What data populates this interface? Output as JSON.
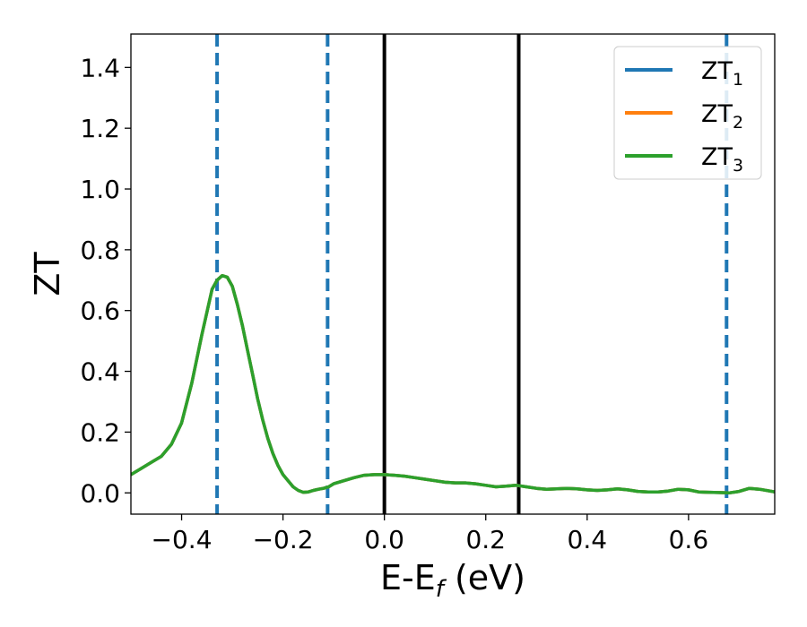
{
  "chart_data": {
    "type": "line",
    "xlabel": "E-E",
    "xlabel_sub": "f",
    "xlabel_unit": " (eV)",
    "ylabel": "ZT",
    "xlim": [
      -0.5,
      0.77
    ],
    "ylim": [
      -0.07,
      1.51
    ],
    "xticks": [
      -0.4,
      -0.2,
      0.0,
      0.2,
      0.4,
      0.6
    ],
    "xtick_labels": [
      "−0.4",
      "−0.2",
      "0.0",
      "0.2",
      "0.4",
      "0.6"
    ],
    "yticks": [
      0.0,
      0.2,
      0.4,
      0.6,
      0.8,
      1.0,
      1.2,
      1.4
    ],
    "ytick_labels": [
      "0.0",
      "0.2",
      "0.4",
      "0.6",
      "0.8",
      "1.0",
      "1.2",
      "1.4"
    ],
    "grid": false,
    "legend_position": "top-right",
    "series": [
      {
        "name": "ZT",
        "name_sub": "1",
        "color": "#1f77b4",
        "x": [
          -0.5,
          -0.48,
          -0.46,
          -0.44,
          -0.42,
          -0.4,
          -0.38,
          -0.36,
          -0.34,
          -0.33,
          -0.32,
          -0.31,
          -0.3,
          -0.29,
          -0.28,
          -0.27,
          -0.26,
          -0.25,
          -0.24,
          -0.23,
          -0.22,
          -0.21,
          -0.2,
          -0.19,
          -0.18,
          -0.17,
          -0.16,
          -0.15,
          -0.14,
          -0.13,
          -0.12,
          -0.11,
          -0.1,
          -0.08,
          -0.06,
          -0.04,
          -0.02,
          0.0,
          0.02,
          0.04,
          0.06,
          0.08,
          0.1,
          0.12,
          0.14,
          0.16,
          0.18,
          0.2,
          0.22,
          0.24,
          0.26,
          0.28,
          0.3,
          0.32,
          0.34,
          0.36,
          0.38,
          0.4,
          0.42,
          0.44,
          0.46,
          0.48,
          0.5,
          0.52,
          0.54,
          0.56,
          0.58,
          0.6,
          0.62,
          0.64,
          0.66,
          0.68,
          0.7,
          0.72,
          0.74,
          0.77
        ],
        "y": [
          0.06,
          0.08,
          0.1,
          0.12,
          0.16,
          0.23,
          0.36,
          0.52,
          0.67,
          0.7,
          0.715,
          0.71,
          0.68,
          0.62,
          0.55,
          0.47,
          0.39,
          0.31,
          0.24,
          0.18,
          0.13,
          0.09,
          0.06,
          0.04,
          0.02,
          0.008,
          0.002,
          0.003,
          0.008,
          0.012,
          0.015,
          0.02,
          0.03,
          0.04,
          0.05,
          0.058,
          0.06,
          0.06,
          0.058,
          0.055,
          0.05,
          0.045,
          0.04,
          0.035,
          0.033,
          0.033,
          0.03,
          0.025,
          0.02,
          0.022,
          0.025,
          0.02,
          0.015,
          0.012,
          0.013,
          0.015,
          0.013,
          0.01,
          0.008,
          0.01,
          0.013,
          0.01,
          0.005,
          0.003,
          0.003,
          0.006,
          0.012,
          0.01,
          0.003,
          0.002,
          0.001,
          0.0,
          0.005,
          0.015,
          0.012,
          0.003
        ]
      },
      {
        "name": "ZT",
        "name_sub": "2",
        "color": "#ff7f0e",
        "x": [
          -0.5,
          -0.48,
          -0.46,
          -0.44,
          -0.42,
          -0.4,
          -0.38,
          -0.36,
          -0.34,
          -0.33,
          -0.32,
          -0.31,
          -0.3,
          -0.29,
          -0.28,
          -0.27,
          -0.26,
          -0.25,
          -0.24,
          -0.23,
          -0.22,
          -0.21,
          -0.2,
          -0.19,
          -0.18,
          -0.17,
          -0.16,
          -0.15,
          -0.14,
          -0.13,
          -0.12,
          -0.11,
          -0.1,
          -0.08,
          -0.06,
          -0.04,
          -0.02,
          0.0,
          0.02,
          0.04,
          0.06,
          0.08,
          0.1,
          0.12,
          0.14,
          0.16,
          0.18,
          0.2,
          0.22,
          0.24,
          0.26,
          0.28,
          0.3,
          0.32,
          0.34,
          0.36,
          0.38,
          0.4,
          0.42,
          0.44,
          0.46,
          0.48,
          0.5,
          0.52,
          0.54,
          0.56,
          0.58,
          0.6,
          0.62,
          0.64,
          0.66,
          0.68,
          0.7,
          0.72,
          0.74,
          0.77
        ],
        "y": [
          0.06,
          0.08,
          0.1,
          0.12,
          0.16,
          0.23,
          0.36,
          0.52,
          0.67,
          0.7,
          0.715,
          0.71,
          0.68,
          0.62,
          0.55,
          0.47,
          0.39,
          0.31,
          0.24,
          0.18,
          0.13,
          0.09,
          0.06,
          0.04,
          0.02,
          0.008,
          0.002,
          0.003,
          0.008,
          0.012,
          0.015,
          0.02,
          0.03,
          0.04,
          0.05,
          0.058,
          0.06,
          0.06,
          0.058,
          0.055,
          0.05,
          0.045,
          0.04,
          0.035,
          0.033,
          0.033,
          0.03,
          0.025,
          0.02,
          0.022,
          0.025,
          0.02,
          0.015,
          0.012,
          0.013,
          0.015,
          0.013,
          0.01,
          0.008,
          0.01,
          0.013,
          0.01,
          0.005,
          0.003,
          0.003,
          0.006,
          0.012,
          0.01,
          0.003,
          0.002,
          0.001,
          0.0,
          0.005,
          0.015,
          0.012,
          0.003
        ]
      },
      {
        "name": "ZT",
        "name_sub": "3",
        "color": "#2ca02c",
        "x": [
          -0.5,
          -0.48,
          -0.46,
          -0.44,
          -0.42,
          -0.4,
          -0.38,
          -0.36,
          -0.34,
          -0.33,
          -0.32,
          -0.31,
          -0.3,
          -0.29,
          -0.28,
          -0.27,
          -0.26,
          -0.25,
          -0.24,
          -0.23,
          -0.22,
          -0.21,
          -0.2,
          -0.19,
          -0.18,
          -0.17,
          -0.16,
          -0.15,
          -0.14,
          -0.13,
          -0.12,
          -0.11,
          -0.1,
          -0.08,
          -0.06,
          -0.04,
          -0.02,
          0.0,
          0.02,
          0.04,
          0.06,
          0.08,
          0.1,
          0.12,
          0.14,
          0.16,
          0.18,
          0.2,
          0.22,
          0.24,
          0.26,
          0.28,
          0.3,
          0.32,
          0.34,
          0.36,
          0.38,
          0.4,
          0.42,
          0.44,
          0.46,
          0.48,
          0.5,
          0.52,
          0.54,
          0.56,
          0.58,
          0.6,
          0.62,
          0.64,
          0.66,
          0.68,
          0.7,
          0.72,
          0.74,
          0.77
        ],
        "y": [
          0.06,
          0.08,
          0.1,
          0.12,
          0.16,
          0.23,
          0.36,
          0.52,
          0.67,
          0.7,
          0.715,
          0.71,
          0.68,
          0.62,
          0.55,
          0.47,
          0.39,
          0.31,
          0.24,
          0.18,
          0.13,
          0.09,
          0.06,
          0.04,
          0.02,
          0.008,
          0.002,
          0.003,
          0.008,
          0.012,
          0.015,
          0.02,
          0.03,
          0.04,
          0.05,
          0.058,
          0.06,
          0.06,
          0.058,
          0.055,
          0.05,
          0.045,
          0.04,
          0.035,
          0.033,
          0.033,
          0.03,
          0.025,
          0.02,
          0.022,
          0.025,
          0.02,
          0.015,
          0.012,
          0.013,
          0.015,
          0.013,
          0.01,
          0.008,
          0.01,
          0.013,
          0.01,
          0.005,
          0.003,
          0.003,
          0.006,
          0.012,
          0.01,
          0.003,
          0.002,
          0.001,
          0.0,
          0.005,
          0.015,
          0.012,
          0.003
        ]
      }
    ],
    "vlines_dashed": {
      "x": [
        -0.33,
        -0.112,
        0.675
      ],
      "color": "#1f77b4"
    },
    "vlines_solid": {
      "x": [
        0.0,
        0.265
      ],
      "color": "#000000"
    }
  }
}
